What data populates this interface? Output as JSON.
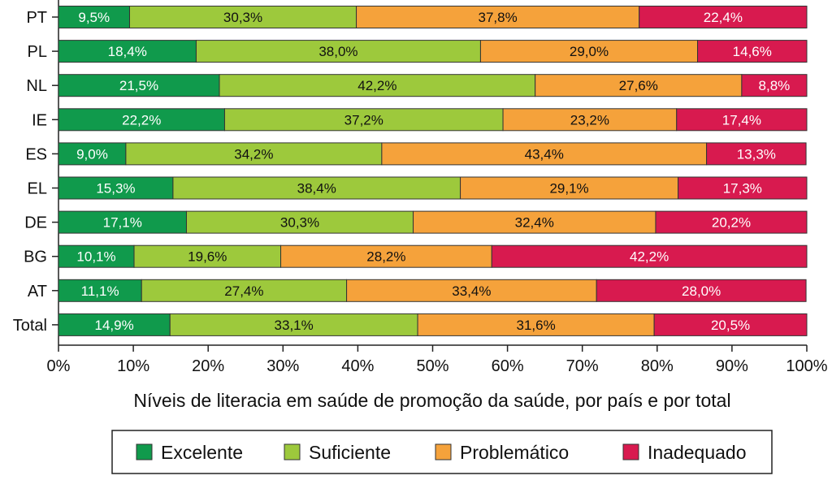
{
  "chart_data": {
    "type": "bar",
    "orientation": "horizontal",
    "stacked": true,
    "title": "",
    "xlabel": "Níveis de literacia em saúde de promoção da saúde, por país e por total",
    "ylabel": "",
    "xlim": [
      0,
      100
    ],
    "x_ticks": [
      "0%",
      "10%",
      "20%",
      "30%",
      "40%",
      "50%",
      "60%",
      "70%",
      "80%",
      "90%",
      "100%"
    ],
    "categories": [
      "PT",
      "PL",
      "NL",
      "IE",
      "ES",
      "EL",
      "DE",
      "BG",
      "AT",
      "Total"
    ],
    "series": [
      {
        "name": "Excelente",
        "color": "#109a4c",
        "values": [
          9.5,
          18.4,
          21.5,
          22.2,
          9.0,
          15.3,
          17.1,
          10.1,
          11.1,
          14.9
        ],
        "labels": [
          "9,5%",
          "18,4%",
          "21,5%",
          "22,2%",
          "9,0%",
          "15,3%",
          "17,1%",
          "10,1%",
          "11,1%",
          "14,9%"
        ]
      },
      {
        "name": "Suficiente",
        "color": "#9dc93c",
        "values": [
          30.3,
          38.0,
          42.2,
          37.2,
          34.2,
          38.4,
          30.3,
          19.6,
          27.4,
          33.1
        ],
        "labels": [
          "30,3%",
          "38,0%",
          "42,2%",
          "37,2%",
          "34,2%",
          "38,4%",
          "30,3%",
          "19,6%",
          "27,4%",
          "33,1%"
        ]
      },
      {
        "name": "Problemático",
        "color": "#f5a23b",
        "values": [
          37.8,
          29.0,
          27.6,
          23.2,
          43.4,
          29.1,
          32.4,
          28.2,
          33.4,
          31.6
        ],
        "labels": [
          "37,8%",
          "29,0%",
          "27,6%",
          "23,2%",
          "43,4%",
          "29,1%",
          "32,4%",
          "28,2%",
          "33,4%",
          "31,6%"
        ]
      },
      {
        "name": "Inadequado",
        "color": "#d81a4f",
        "values": [
          22.4,
          14.6,
          8.8,
          17.4,
          13.3,
          17.3,
          20.2,
          42.2,
          28.0,
          20.5
        ],
        "labels": [
          "22,4%",
          "14,6%",
          "8,8%",
          "17,4%",
          "13,3%",
          "17,3%",
          "20,2%",
          "42,2%",
          "28,0%",
          "20,5%"
        ]
      }
    ],
    "label_colors": [
      "#ffffff",
      "#111111",
      "#111111",
      "#ffffff"
    ],
    "legend": "bottom",
    "grid": false
  }
}
